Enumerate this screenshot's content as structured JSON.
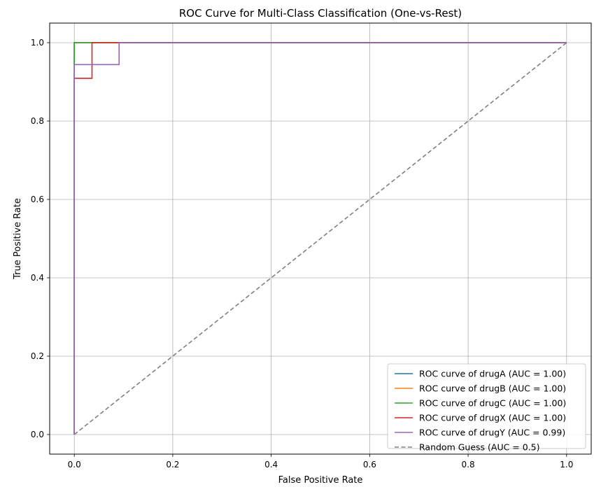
{
  "chart_data": {
    "type": "line",
    "title": "ROC Curve for Multi-Class Classification (One-vs-Rest)",
    "xlabel": "False Positive Rate",
    "ylabel": "True Positive Rate",
    "xlim": [
      -0.05,
      1.05
    ],
    "ylim": [
      -0.05,
      1.05
    ],
    "xticks": [
      0.0,
      0.2,
      0.4,
      0.6,
      0.8,
      1.0
    ],
    "yticks": [
      0.0,
      0.2,
      0.4,
      0.6,
      0.8,
      1.0
    ],
    "tick_labels": [
      "0.0",
      "0.2",
      "0.4",
      "0.6",
      "0.8",
      "1.0"
    ],
    "grid": true,
    "legend_position": "lower-right",
    "series": [
      {
        "name": "ROC curve of drugA (AUC = 1.00)",
        "color": "#1f77b4",
        "style": "solid",
        "x": [
          0.0,
          0.0,
          0.0,
          1.0
        ],
        "y": [
          0.0,
          0.0,
          1.0,
          1.0
        ]
      },
      {
        "name": "ROC curve of drugB (AUC = 1.00)",
        "color": "#ff7f0e",
        "style": "solid",
        "x": [
          0.0,
          0.0,
          0.0,
          1.0
        ],
        "y": [
          0.0,
          0.0,
          1.0,
          1.0
        ]
      },
      {
        "name": "ROC curve of drugC (AUC = 1.00)",
        "color": "#2ca02c",
        "style": "solid",
        "x": [
          0.0,
          0.0,
          0.0,
          1.0
        ],
        "y": [
          0.0,
          0.0,
          1.0,
          1.0
        ]
      },
      {
        "name": "ROC curve of drugX (AUC = 1.00)",
        "color": "#d62728",
        "style": "solid",
        "x": [
          0.0,
          0.0,
          0.0,
          0.036,
          0.036,
          1.0
        ],
        "y": [
          0.0,
          0.0,
          0.909,
          0.909,
          1.0,
          1.0
        ]
      },
      {
        "name": "ROC curve of drugY (AUC = 0.99)",
        "color": "#9467bd",
        "style": "solid",
        "x": [
          0.0,
          0.0,
          0.0,
          0.091,
          0.091,
          1.0
        ],
        "y": [
          0.0,
          0.0,
          0.944,
          0.944,
          1.0,
          1.0
        ]
      },
      {
        "name": "Random Guess (AUC = 0.5)",
        "color": "#808080",
        "style": "dashed",
        "x": [
          0.0,
          1.0
        ],
        "y": [
          0.0,
          1.0
        ]
      }
    ]
  }
}
